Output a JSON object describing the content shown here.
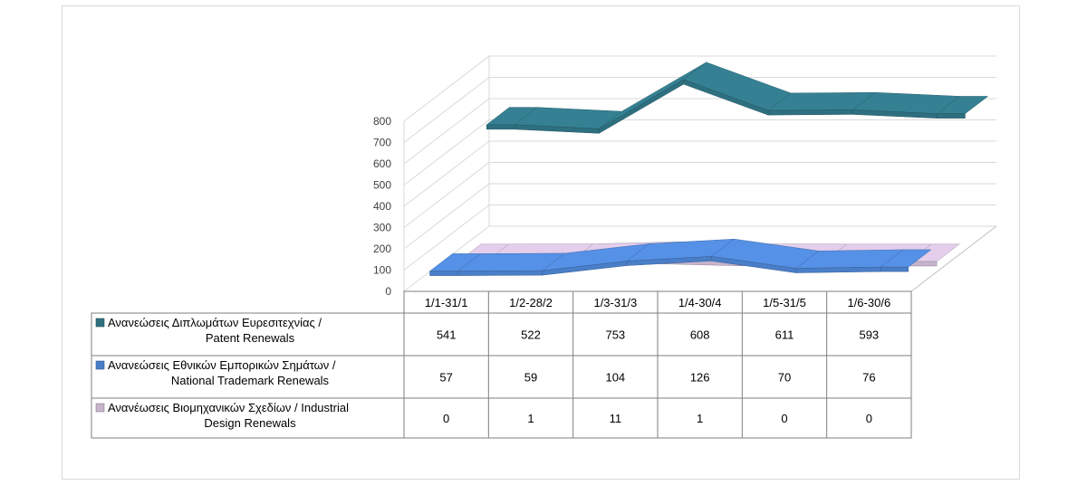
{
  "chart_data": {
    "type": "line",
    "style": "3d",
    "categories": [
      "1/1-31/1",
      "1/2-28/2",
      "1/3-31/3",
      "1/4-30/4",
      "1/5-31/5",
      "1/6-30/6"
    ],
    "ylim": [
      0,
      800
    ],
    "yticks": [
      0,
      100,
      200,
      300,
      400,
      500,
      600,
      700,
      800
    ],
    "grid": true,
    "legend": "data-table",
    "series": [
      {
        "name_lines": [
          "Ανανεώσεις Διπλωμάτων Ευρεσιτεχνίας  /",
          "Patent Renewals"
        ],
        "values": [
          541,
          522,
          753,
          608,
          611,
          593
        ],
        "color": "#2e7080",
        "depth": 2
      },
      {
        "name_lines": [
          "Ανανεώσεις Εθνικών Εμπορικών Σημάτων /",
          "National Trademark Renewals"
        ],
        "values": [
          57,
          59,
          104,
          126,
          70,
          76
        ],
        "color": "#4a7ec8",
        "depth": 0
      },
      {
        "name_lines": [
          "Ανανέωσεις Βιομηχανικών Σχεδίων / Industrial",
          "Design Renewals"
        ],
        "values": [
          0,
          1,
          11,
          1,
          0,
          0
        ],
        "color": "#c6b3cc",
        "depth": 1
      }
    ]
  }
}
